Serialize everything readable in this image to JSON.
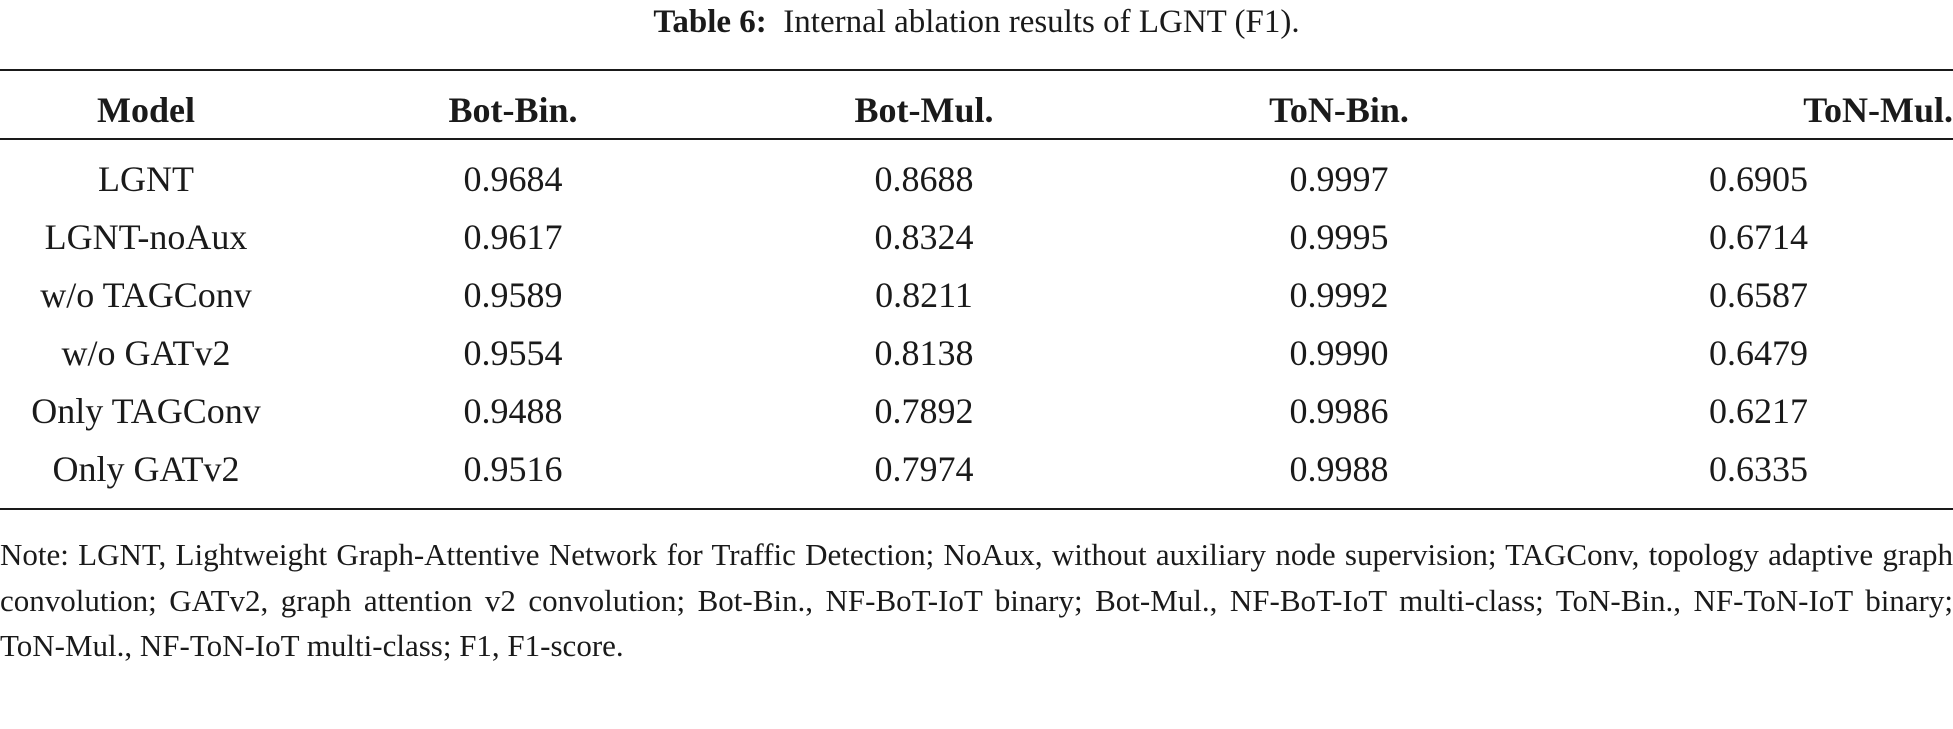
{
  "caption": {
    "label": "Table 6:",
    "text": "Internal ablation results of LGNT (F1)."
  },
  "table": {
    "headers": [
      "Model",
      "Bot-Bin.",
      "Bot-Mul.",
      "ToN-Bin.",
      "ToN-Mul."
    ],
    "rows": [
      [
        "LGNT",
        "0.9684",
        "0.8688",
        "0.9997",
        "0.6905"
      ],
      [
        "LGNT-noAux",
        "0.9617",
        "0.8324",
        "0.9995",
        "0.6714"
      ],
      [
        "w/o TAGConv",
        "0.9589",
        "0.8211",
        "0.9992",
        "0.6587"
      ],
      [
        "w/o GATv2",
        "0.9554",
        "0.8138",
        "0.9990",
        "0.6479"
      ],
      [
        "Only TAGConv",
        "0.9488",
        "0.7892",
        "0.9986",
        "0.6217"
      ],
      [
        "Only GATv2",
        "0.9516",
        "0.7974",
        "0.9988",
        "0.6335"
      ]
    ]
  },
  "note": "Note: LGNT, Lightweight Graph-Attentive Network for Traffic Detection; NoAux, without auxiliary node supervision; TAGConv, topology adaptive graph convolution; GATv2, graph attention v2 convolution; Bot-Bin., NF-BoT-IoT binary; Bot-Mul., NF-BoT-IoT multi-class; ToN-Bin., NF-ToN-IoT binary; ToN-Mul., NF-ToN-IoT multi-class; F1, F1-score."
}
